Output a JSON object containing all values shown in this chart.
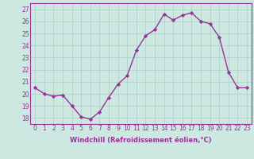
{
  "x": [
    0,
    1,
    2,
    3,
    4,
    5,
    6,
    7,
    8,
    9,
    10,
    11,
    12,
    13,
    14,
    15,
    16,
    17,
    18,
    19,
    20,
    21,
    22,
    23
  ],
  "y": [
    20.5,
    20.0,
    19.8,
    19.9,
    19.0,
    18.1,
    17.9,
    18.5,
    19.7,
    20.8,
    21.5,
    23.6,
    24.8,
    25.3,
    26.6,
    26.1,
    26.5,
    26.7,
    26.0,
    25.8,
    24.7,
    21.8,
    20.5,
    20.5
  ],
  "xlim": [
    -0.5,
    23.5
  ],
  "ylim": [
    17.5,
    27.5
  ],
  "yticks": [
    18,
    19,
    20,
    21,
    22,
    23,
    24,
    25,
    26,
    27
  ],
  "xticks": [
    0,
    1,
    2,
    3,
    4,
    5,
    6,
    7,
    8,
    9,
    10,
    11,
    12,
    13,
    14,
    15,
    16,
    17,
    18,
    19,
    20,
    21,
    22,
    23
  ],
  "xlabel": "Windchill (Refroidissement éolien,°C)",
  "line_color": "#993399",
  "marker": "D",
  "marker_size": 2.2,
  "line_width": 1.0,
  "bg_color": "#cce8e0",
  "grid_color": "#aacccc",
  "tick_color": "#993399",
  "xlabel_color": "#993399",
  "tick_fontsize": 5.5,
  "xlabel_fontsize": 6.0
}
